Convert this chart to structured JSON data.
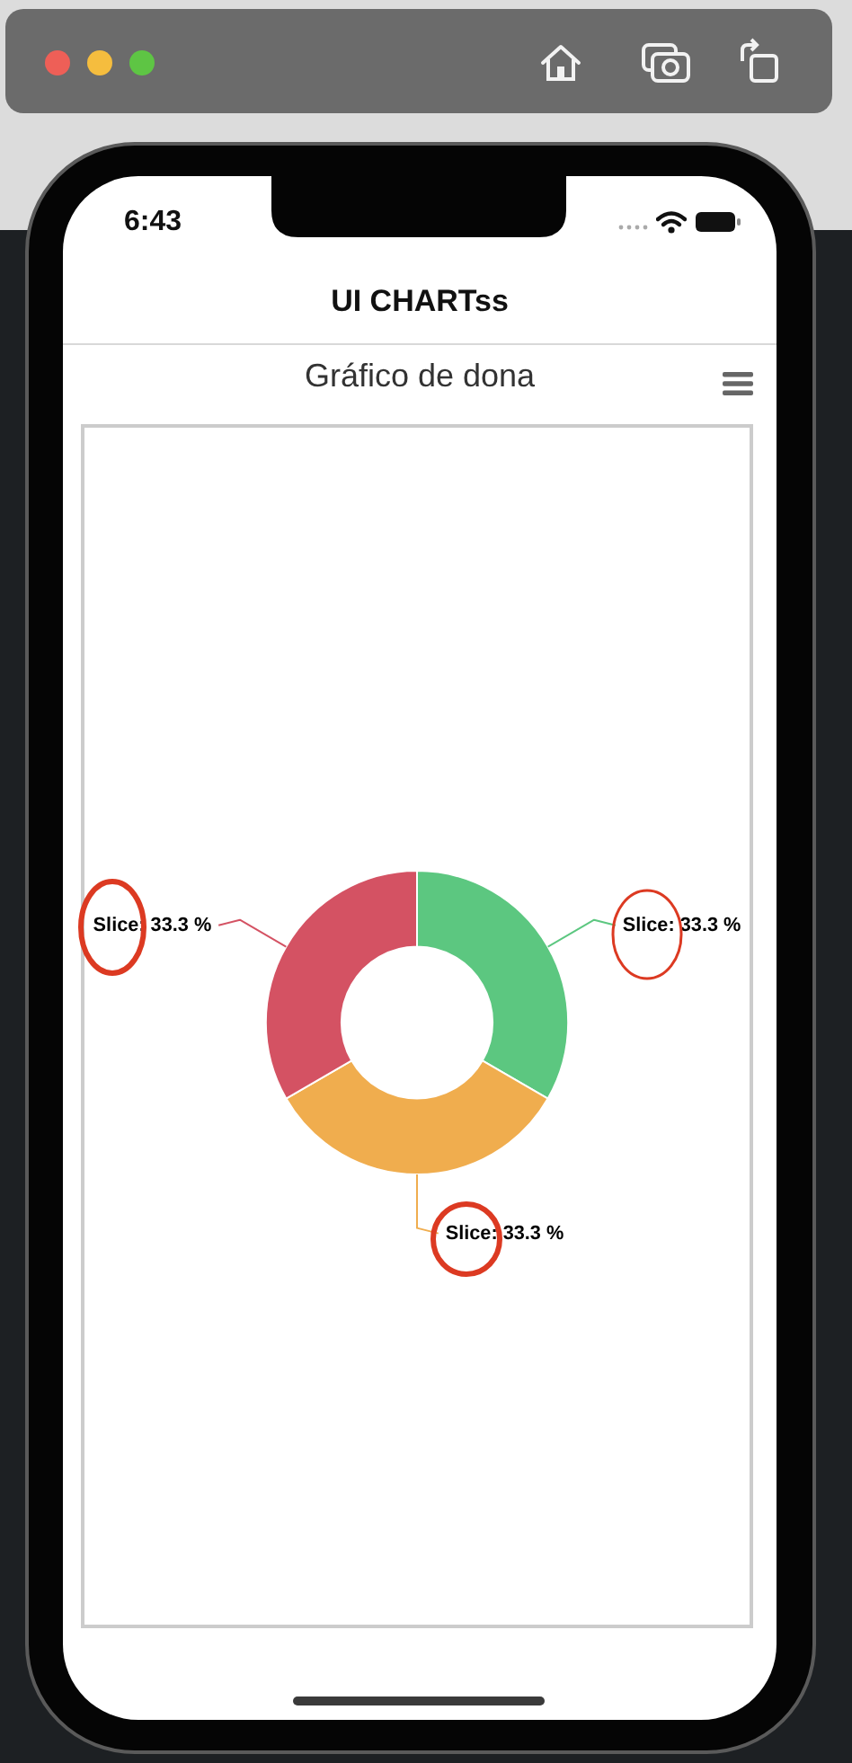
{
  "chart_data": {
    "type": "donut",
    "title": "Gráfico de dona",
    "categories": [
      "Slice",
      "Slice",
      "Slice"
    ],
    "values": [
      33.3,
      33.3,
      33.3
    ],
    "colors": [
      "#5cc780",
      "#f0ad4e",
      "#d45263"
    ],
    "value_labels": [
      "33.3 %",
      "33.3 %",
      "33.3 %"
    ],
    "annotations": [
      "UI CHARTss",
      "6:43"
    ]
  }
}
